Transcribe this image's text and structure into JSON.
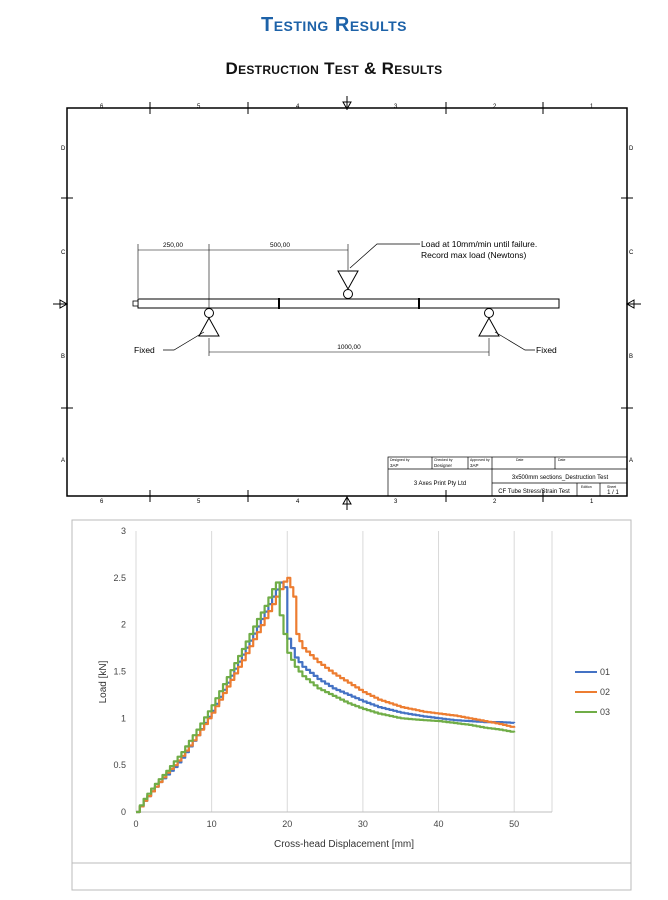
{
  "page": {
    "title": "Testing Results",
    "subtitle": "Destruction Test & Results"
  },
  "drawing": {
    "col_numbers": [
      "6",
      "5",
      "4",
      "3",
      "2",
      "1"
    ],
    "row_letters": [
      "D",
      "C",
      "B",
      "A"
    ],
    "dim_left": "250,00",
    "dim_middle": "500,00",
    "dim_bottom": "1000,00",
    "load_note_line1": "Load at 10mm/min until failure.",
    "load_note_line2": "Record max load (Newtons)",
    "fixed_left": "Fixed",
    "fixed_right": "Fixed",
    "title_block": {
      "designed_by_label": "Designed by",
      "designed_by": "3AP",
      "checked_by_label": "Checked by",
      "checked_by": "Designer",
      "approved_by_label": "Approved by",
      "approved_by": "3AP",
      "date_label": "Date",
      "date2_label": "Date",
      "company": "3 Axes Print Pty Ltd",
      "part_name": "3x500mm sections_Destruction Test",
      "description": "CF Tube Stress/Strain Test",
      "edition_label": "Edition",
      "sheet_label": "Sheet",
      "sheet": "1 / 1"
    }
  },
  "chart_data": {
    "type": "line",
    "xlabel": "Cross-head Displacement [mm]",
    "ylabel": "Load [kN]",
    "xlim": [
      0,
      55
    ],
    "ylim": [
      0,
      3
    ],
    "xticks": [
      0,
      10,
      20,
      30,
      40,
      50
    ],
    "yticks": [
      0,
      0.5,
      1,
      1.5,
      2,
      2.5,
      3
    ],
    "grid": "vertical",
    "legend": "right",
    "series": [
      {
        "name": "01",
        "color": "#4472c4",
        "x": [
          0,
          1,
          2,
          3,
          4,
          5,
          6,
          8,
          10,
          12,
          14,
          16,
          18,
          19,
          19.5,
          20,
          21,
          22,
          24,
          26,
          28,
          30,
          32,
          35,
          38,
          40,
          42,
          44,
          46,
          48,
          50
        ],
        "y": [
          0,
          0.12,
          0.22,
          0.32,
          0.4,
          0.48,
          0.58,
          0.82,
          1.08,
          1.38,
          1.68,
          1.98,
          2.3,
          2.45,
          2.4,
          1.85,
          1.65,
          1.55,
          1.42,
          1.32,
          1.25,
          1.18,
          1.12,
          1.06,
          1.02,
          1.0,
          0.98,
          0.97,
          0.96,
          0.96,
          0.95
        ]
      },
      {
        "name": "02",
        "color": "#ed7d31",
        "x": [
          0,
          1,
          2,
          3,
          4,
          5,
          6,
          8,
          10,
          12,
          14,
          16,
          18,
          19.5,
          20,
          20.8,
          21.2,
          22,
          24,
          26,
          28,
          30,
          32,
          35,
          38,
          40,
          42,
          44,
          46,
          48,
          50
        ],
        "y": [
          0,
          0.12,
          0.22,
          0.32,
          0.42,
          0.5,
          0.6,
          0.82,
          1.06,
          1.34,
          1.62,
          1.92,
          2.22,
          2.46,
          2.5,
          2.3,
          1.9,
          1.75,
          1.6,
          1.48,
          1.38,
          1.28,
          1.2,
          1.12,
          1.07,
          1.05,
          1.03,
          1.0,
          0.97,
          0.94,
          0.9
        ]
      },
      {
        "name": "03",
        "color": "#70ad47",
        "x": [
          0,
          1,
          2,
          3,
          4,
          5,
          6,
          8,
          10,
          12,
          14,
          16,
          17,
          18,
          18.5,
          19,
          20,
          21,
          22,
          24,
          26,
          28,
          30,
          32,
          35,
          38,
          40,
          42,
          44,
          46,
          48,
          50
        ],
        "y": [
          0,
          0.14,
          0.25,
          0.35,
          0.44,
          0.54,
          0.64,
          0.88,
          1.14,
          1.44,
          1.74,
          2.06,
          2.2,
          2.38,
          2.45,
          2.1,
          1.7,
          1.55,
          1.45,
          1.32,
          1.24,
          1.16,
          1.1,
          1.05,
          1.0,
          0.98,
          0.97,
          0.95,
          0.93,
          0.9,
          0.88,
          0.85
        ]
      }
    ]
  }
}
